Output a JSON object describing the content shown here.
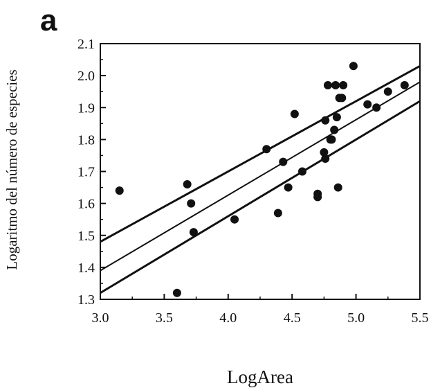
{
  "panel_label": "a",
  "chart_data": {
    "type": "scatter",
    "title": "",
    "xlabel": "LogArea",
    "ylabel": "Logaritmo del número de especies",
    "xlim": [
      3.0,
      5.5
    ],
    "ylim": [
      1.3,
      2.1
    ],
    "x_ticks": [
      3.0,
      3.5,
      4.0,
      4.5,
      5.0,
      5.5
    ],
    "x_tick_labels": [
      "3.0",
      "3.5",
      "4.0",
      "4.5",
      "5.0",
      "5.5"
    ],
    "y_ticks": [
      1.3,
      1.4,
      1.5,
      1.6,
      1.7,
      1.8,
      1.9,
      2.0,
      2.1
    ],
    "y_tick_labels": [
      "1.3",
      "1.4",
      "1.5",
      "1.6",
      "1.7",
      "1.8",
      "1.9",
      "2.0",
      "2.1"
    ],
    "grid": false,
    "points": [
      {
        "x": 3.15,
        "y": 1.64
      },
      {
        "x": 3.6,
        "y": 1.32
      },
      {
        "x": 3.68,
        "y": 1.66
      },
      {
        "x": 3.71,
        "y": 1.6
      },
      {
        "x": 3.73,
        "y": 1.51
      },
      {
        "x": 4.05,
        "y": 1.55
      },
      {
        "x": 4.3,
        "y": 1.77
      },
      {
        "x": 4.39,
        "y": 1.57
      },
      {
        "x": 4.43,
        "y": 1.73
      },
      {
        "x": 4.47,
        "y": 1.65
      },
      {
        "x": 4.52,
        "y": 1.88
      },
      {
        "x": 4.58,
        "y": 1.7
      },
      {
        "x": 4.7,
        "y": 1.63
      },
      {
        "x": 4.7,
        "y": 1.62
      },
      {
        "x": 4.75,
        "y": 1.76
      },
      {
        "x": 4.76,
        "y": 1.74
      },
      {
        "x": 4.76,
        "y": 1.86
      },
      {
        "x": 4.78,
        "y": 1.97
      },
      {
        "x": 4.8,
        "y": 1.8
      },
      {
        "x": 4.81,
        "y": 1.8
      },
      {
        "x": 4.83,
        "y": 1.83
      },
      {
        "x": 4.84,
        "y": 1.97
      },
      {
        "x": 4.85,
        "y": 1.87
      },
      {
        "x": 4.86,
        "y": 1.65
      },
      {
        "x": 4.87,
        "y": 1.93
      },
      {
        "x": 4.89,
        "y": 1.93
      },
      {
        "x": 4.9,
        "y": 1.97
      },
      {
        "x": 4.98,
        "y": 2.03
      },
      {
        "x": 5.09,
        "y": 1.91
      },
      {
        "x": 5.16,
        "y": 1.9
      },
      {
        "x": 5.25,
        "y": 1.95
      },
      {
        "x": 5.38,
        "y": 1.97
      }
    ],
    "lines": [
      {
        "x": [
          3.0,
          5.5
        ],
        "y": [
          1.48,
          2.03
        ]
      },
      {
        "x": [
          3.0,
          5.5
        ],
        "y": [
          1.39,
          1.98
        ]
      },
      {
        "x": [
          3.0,
          5.5
        ],
        "y": [
          1.32,
          1.92
        ]
      }
    ]
  }
}
